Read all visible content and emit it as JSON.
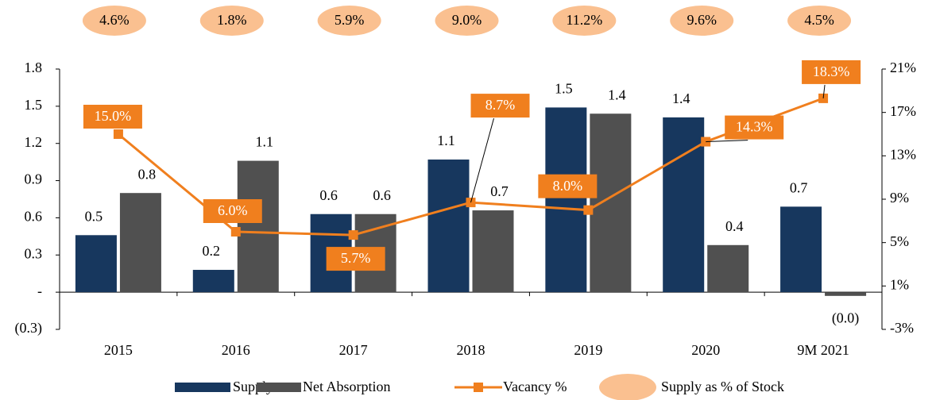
{
  "chart_data": {
    "type": "bar",
    "categories": [
      "2015",
      "2016",
      "2017",
      "2018",
      "2019",
      "2020",
      "9M 2021"
    ],
    "series": [
      {
        "name": "Supply",
        "type": "bar",
        "color": "#17375e",
        "values": [
          0.46,
          0.18,
          0.63,
          1.07,
          1.49,
          1.41,
          0.69
        ],
        "value_labels": [
          "0.5",
          "0.2",
          "0.6",
          "1.1",
          "1.5",
          "1.4",
          "0.7"
        ]
      },
      {
        "name": "Net Absorption",
        "type": "bar",
        "color": "#505050",
        "values": [
          0.8,
          1.06,
          0.63,
          0.66,
          1.44,
          0.38,
          -0.03
        ],
        "value_labels": [
          "0.8",
          "1.1",
          "0.6",
          "0.7",
          "1.4",
          "0.4",
          "(0.0)"
        ]
      },
      {
        "name": "Vacancy %",
        "type": "line",
        "axis": "y2",
        "color": "#f07f1e",
        "values": [
          15.0,
          6.0,
          5.7,
          8.7,
          8.0,
          14.3,
          18.3
        ],
        "value_labels": [
          "15.0%",
          "6.0%",
          "5.7%",
          "8.7%",
          "8.0%",
          "14.3%",
          "18.3%"
        ]
      },
      {
        "name": "Supply as % of Stock",
        "type": "label",
        "color": "#fac090",
        "values": [
          4.6,
          1.8,
          5.9,
          9.0,
          11.2,
          9.6,
          4.5
        ],
        "value_labels": [
          "4.6%",
          "1.8%",
          "5.9%",
          "9.0%",
          "11.2%",
          "9.6%",
          "4.5%"
        ]
      }
    ],
    "ylim": [
      -0.3,
      1.8
    ],
    "yticks": [
      {
        "value": -0.3,
        "label": "(0.3)"
      },
      {
        "value": 0,
        "label": "-"
      },
      0.3,
      0.6,
      0.9,
      1.2,
      1.5,
      1.8
    ],
    "y2lim": [
      -3,
      21
    ],
    "y2ticks": [
      {
        "value": -3,
        "label": "-3%"
      },
      {
        "value": 1,
        "label": "1%"
      },
      {
        "value": 5,
        "label": "5%"
      },
      {
        "value": 9,
        "label": "9%"
      },
      {
        "value": 13,
        "label": "13%"
      },
      {
        "value": 17,
        "label": "17%"
      },
      {
        "value": 21,
        "label": "21%"
      }
    ],
    "legend": "bottom"
  }
}
